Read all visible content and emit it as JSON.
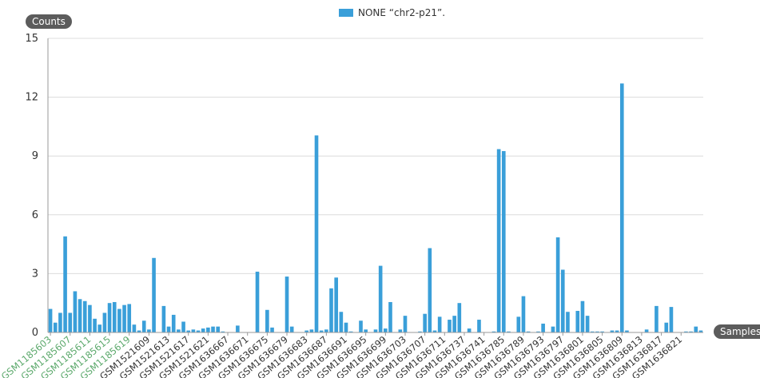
{
  "chart_data": {
    "type": "bar",
    "legend": {
      "label": "NONE “chr2-p21”.",
      "color": "#3a9fd9"
    },
    "ylabel": "Counts",
    "xlabel": "Samples",
    "ylim": [
      0,
      15
    ],
    "yticks": [
      0,
      3,
      6,
      9,
      12,
      15
    ],
    "grid": true,
    "xtick_labels": [
      {
        "label": "GSM1185603",
        "index": 0,
        "color": "#5aa86a"
      },
      {
        "label": "GSM1185607",
        "index": 4,
        "color": "#5aa86a"
      },
      {
        "label": "GSM1185611",
        "index": 8,
        "color": "#5aa86a"
      },
      {
        "label": "GSM1185615",
        "index": 12,
        "color": "#5aa86a"
      },
      {
        "label": "GSM1185619",
        "index": 16,
        "color": "#5aa86a"
      },
      {
        "label": "GSM1521609",
        "index": 20,
        "color": "#333333"
      },
      {
        "label": "GSM1521613",
        "index": 24,
        "color": "#333333"
      },
      {
        "label": "GSM1521617",
        "index": 28,
        "color": "#333333"
      },
      {
        "label": "GSM1521621",
        "index": 32,
        "color": "#333333"
      },
      {
        "label": "GSM1636667",
        "index": 36,
        "color": "#333333"
      },
      {
        "label": "GSM1636671",
        "index": 40,
        "color": "#333333"
      },
      {
        "label": "GSM1636675",
        "index": 44,
        "color": "#333333"
      },
      {
        "label": "GSM1636679",
        "index": 48,
        "color": "#333333"
      },
      {
        "label": "GSM1636683",
        "index": 52,
        "color": "#333333"
      },
      {
        "label": "GSM1636687",
        "index": 56,
        "color": "#333333"
      },
      {
        "label": "GSM1636691",
        "index": 60,
        "color": "#333333"
      },
      {
        "label": "GSM1636695",
        "index": 64,
        "color": "#333333"
      },
      {
        "label": "GSM1636699",
        "index": 68,
        "color": "#333333"
      },
      {
        "label": "GSM1636703",
        "index": 72,
        "color": "#333333"
      },
      {
        "label": "GSM1636707",
        "index": 76,
        "color": "#333333"
      },
      {
        "label": "GSM1636711",
        "index": 80,
        "color": "#333333"
      },
      {
        "label": "GSM1636737",
        "index": 84,
        "color": "#333333"
      },
      {
        "label": "GSM1636741",
        "index": 88,
        "color": "#333333"
      },
      {
        "label": "GSM1636785",
        "index": 92,
        "color": "#333333"
      },
      {
        "label": "GSM1636789",
        "index": 96,
        "color": "#333333"
      },
      {
        "label": "GSM1636793",
        "index": 100,
        "color": "#333333"
      },
      {
        "label": "GSM1636797",
        "index": 104,
        "color": "#333333"
      },
      {
        "label": "GSM1636801",
        "index": 108,
        "color": "#333333"
      },
      {
        "label": "GSM1636805",
        "index": 112,
        "color": "#333333"
      },
      {
        "label": "GSM1636809",
        "index": 116,
        "color": "#333333"
      },
      {
        "label": "GSM1636813",
        "index": 120,
        "color": "#333333"
      },
      {
        "label": "GSM1636817",
        "index": 124,
        "color": "#333333"
      },
      {
        "label": "GSM1636821",
        "index": 128,
        "color": "#333333"
      }
    ],
    "values": [
      1.2,
      0.5,
      1.0,
      4.9,
      1.0,
      2.1,
      1.7,
      1.6,
      1.4,
      0.7,
      0.4,
      1.0,
      1.5,
      1.55,
      1.2,
      1.4,
      1.45,
      0.4,
      0.1,
      0.6,
      0.15,
      3.8,
      0.0,
      1.35,
      0.3,
      0.9,
      0.15,
      0.55,
      0.1,
      0.15,
      0.1,
      0.2,
      0.25,
      0.3,
      0.3,
      0.05,
      0.0,
      0.0,
      0.35,
      0.0,
      0.0,
      0.0,
      3.1,
      0.0,
      1.15,
      0.25,
      0.0,
      0.0,
      2.85,
      0.3,
      0.0,
      0.0,
      0.1,
      0.15,
      10.05,
      0.1,
      0.15,
      2.25,
      2.8,
      1.05,
      0.5,
      0.05,
      0.0,
      0.6,
      0.15,
      0.0,
      0.15,
      3.4,
      0.2,
      1.55,
      0.0,
      0.15,
      0.85,
      0.0,
      0.0,
      0.05,
      0.95,
      4.3,
      0.1,
      0.8,
      0.0,
      0.65,
      0.85,
      1.5,
      0.0,
      0.2,
      0.0,
      0.65,
      0.0,
      0.0,
      0.05,
      9.35,
      9.25,
      0.05,
      0.0,
      0.8,
      1.85,
      0.05,
      0.0,
      0.05,
      0.45,
      0.0,
      0.3,
      4.85,
      3.2,
      1.05,
      0.0,
      1.1,
      1.6,
      0.85,
      0.05,
      0.05,
      0.05,
      0.0,
      0.1,
      0.1,
      12.7,
      0.1,
      0.0,
      0.0,
      0.0,
      0.15,
      0.0,
      1.35,
      0.0,
      0.5,
      1.3,
      0.0,
      0.0,
      0.05,
      0.05,
      0.3,
      0.1
    ]
  }
}
